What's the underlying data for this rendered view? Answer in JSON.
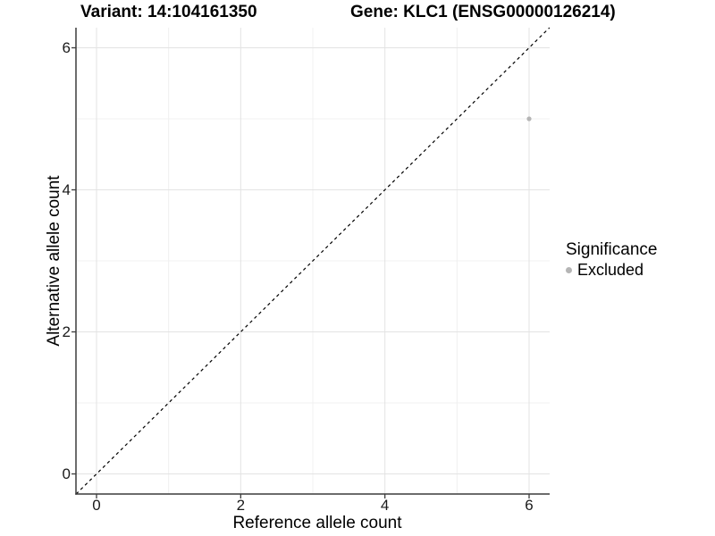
{
  "titles": {
    "variant": "Variant: 14:104161350",
    "gene": "Gene: KLC1 (ENSG00000126214)"
  },
  "chart_data": {
    "type": "scatter",
    "xlabel": "Reference allele count",
    "ylabel": "Alternative allele count",
    "x_ticks": [
      0,
      2,
      4,
      6
    ],
    "y_ticks": [
      0,
      2,
      4,
      6
    ],
    "x_minor_ticks": [
      1,
      3,
      5
    ],
    "y_minor_ticks": [
      1,
      3,
      5
    ],
    "xlim": [
      -0.29,
      6.29
    ],
    "ylim": [
      -0.29,
      6.29
    ],
    "grid": "on",
    "legend_position": "right",
    "series": [
      {
        "name": "Excluded",
        "color": "#b5b5b5",
        "points": [
          {
            "x": 6,
            "y": 5
          }
        ]
      }
    ],
    "reference_line": {
      "kind": "identity",
      "equation": "y = x",
      "style": "dashed",
      "color": "#000000"
    },
    "legend": {
      "title": "Significance",
      "items": [
        {
          "label": "Excluded",
          "color": "#b5b5b5"
        }
      ]
    },
    "colors": {
      "background": "#ffffff",
      "grid_major": "#e3e3e3",
      "grid_minor": "#f0f0f0",
      "axis_line": "#3c3c3c",
      "tick_mark": "#3c3c3c",
      "point": "#b5b5b5",
      "text": "#000000"
    }
  }
}
